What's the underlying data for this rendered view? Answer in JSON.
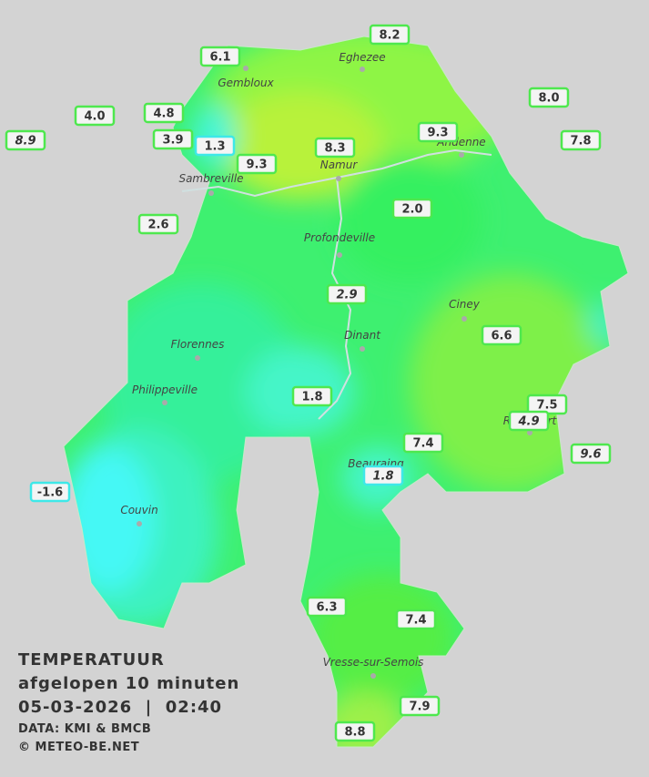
{
  "title": {
    "line1": "TEMPERATUUR",
    "line2": "afgelopen 10 minuten",
    "line3": "05-03-2026  |  02:40",
    "source": "DATA: KMI & BMCB",
    "copyright": "© METEO-BE.NET"
  },
  "cities": [
    "Eghezee",
    "Gembloux",
    "Andenne",
    "Namur",
    "Sambreville",
    "Profondeville",
    "Ciney",
    "Dinant",
    "Florennes",
    "Philippeville",
    "Couvin",
    "Vresse-sur-Semois",
    "Rochefort",
    "Beauraing"
  ],
  "stations": [
    "8.2",
    "6.1",
    "8.0",
    "4.0",
    "4.8",
    "8.9",
    "3.9",
    "1.3",
    "9.3",
    "7.8",
    "8.3",
    "9.3",
    "2.0",
    "2.6",
    "2.9",
    "6.6",
    "1.8",
    "7.5",
    "4.9",
    "9.6",
    "7.4",
    "1.8",
    "-1.6",
    "6.3",
    "7.4",
    "7.9",
    "8.8"
  ]
}
